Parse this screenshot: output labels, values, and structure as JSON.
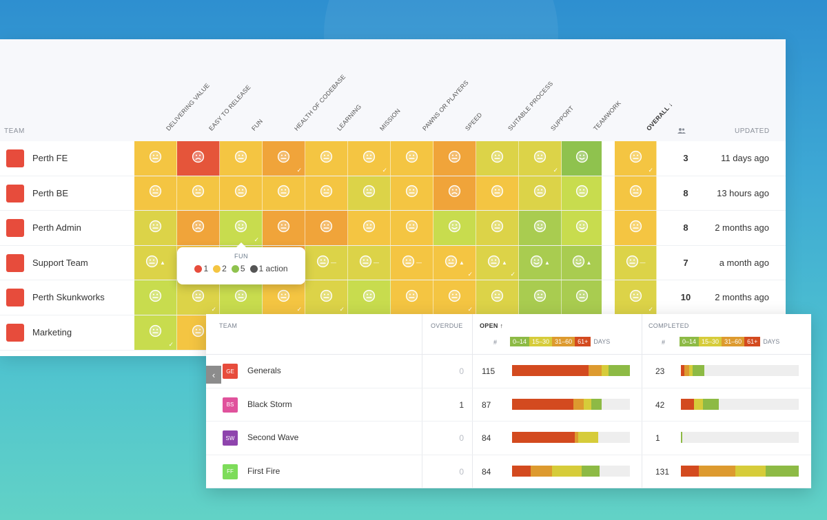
{
  "health": {
    "team_header": "TEAM",
    "updated_header": "UPDATED",
    "count_icon": "people-icon",
    "columns": [
      {
        "label": "DELIVERING VALUE"
      },
      {
        "label": "EASY TO RELEASE"
      },
      {
        "label": "FUN"
      },
      {
        "label": "HEALTH OF CODEBASE"
      },
      {
        "label": "LEARNING"
      },
      {
        "label": "MISSION"
      },
      {
        "label": "PAWNS OR PLAYERS"
      },
      {
        "label": "SPEED"
      },
      {
        "label": "SUITABLE PROCESS"
      },
      {
        "label": "SUPPORT"
      },
      {
        "label": "TEAMWORK"
      },
      {
        "label": "OVERALL ↓"
      }
    ],
    "rows": [
      {
        "name": "Perth FE",
        "count": "3",
        "updated": "11 days ago",
        "cells": [
          {
            "c": "#f4c542",
            "f": "neutral"
          },
          {
            "c": "#e5553a",
            "f": "sad"
          },
          {
            "c": "#f4c542",
            "f": "neutral"
          },
          {
            "c": "#f0a43a",
            "f": "neutral",
            "t": 1
          },
          {
            "c": "#f4c542",
            "f": "neutral"
          },
          {
            "c": "#f4c542",
            "f": "neutral",
            "t": 1
          },
          {
            "c": "#f4c542",
            "f": "neutral"
          },
          {
            "c": "#f0a43a",
            "f": "neutral"
          },
          {
            "c": "#dcd348",
            "f": "neutral"
          },
          {
            "c": "#dcd348",
            "f": "neutral",
            "t": 1
          },
          {
            "c": "#8fc24e",
            "f": "happy"
          },
          {
            "c": "#f4c542",
            "f": "neutral",
            "t": 1
          }
        ]
      },
      {
        "name": "Perth BE",
        "count": "8",
        "updated": "13 hours ago",
        "cells": [
          {
            "c": "#f4c542",
            "f": "neutral"
          },
          {
            "c": "#f4c542",
            "f": "neutral"
          },
          {
            "c": "#f4c542",
            "f": "neutral"
          },
          {
            "c": "#f4c542",
            "f": "neutral"
          },
          {
            "c": "#f4c542",
            "f": "neutral"
          },
          {
            "c": "#dcd348",
            "f": "neutral"
          },
          {
            "c": "#f4c542",
            "f": "neutral"
          },
          {
            "c": "#f0a43a",
            "f": "sad"
          },
          {
            "c": "#f4c542",
            "f": "neutral"
          },
          {
            "c": "#dcd348",
            "f": "neutral"
          },
          {
            "c": "#c8dc4e",
            "f": "neutral"
          },
          {
            "c": "#f4c542",
            "f": "neutral"
          }
        ]
      },
      {
        "name": "Perth Admin",
        "count": "8",
        "updated": "2 months ago",
        "cells": [
          {
            "c": "#dcd348",
            "f": "neutral"
          },
          {
            "c": "#f0a43a",
            "f": "sad"
          },
          {
            "c": "#c8dc4e",
            "f": "happy",
            "t": 1
          },
          {
            "c": "#f0a43a",
            "f": "neutral"
          },
          {
            "c": "#f0a43a",
            "f": "neutral"
          },
          {
            "c": "#f4c542",
            "f": "neutral"
          },
          {
            "c": "#f4c542",
            "f": "neutral"
          },
          {
            "c": "#c8dc4e",
            "f": "happy"
          },
          {
            "c": "#dcd348",
            "f": "neutral"
          },
          {
            "c": "#a9cc50",
            "f": "happy"
          },
          {
            "c": "#c8dc4e",
            "f": "happy"
          },
          {
            "c": "#f4c542",
            "f": "neutral"
          }
        ]
      },
      {
        "name": "Support Team",
        "count": "7",
        "updated": "a month ago",
        "cells": [
          {
            "c": "#dcd348",
            "f": "neutral",
            "tr": "up"
          },
          {
            "c": "#f4c542",
            "f": "neutral"
          },
          {
            "c": "#c8dc4e",
            "f": "neutral"
          },
          {
            "c": "#f0a43a",
            "f": "neutral",
            "tr": "down",
            "t": 1
          },
          {
            "c": "#dcd348",
            "f": "neutral",
            "tr": "flat"
          },
          {
            "c": "#dcd348",
            "f": "neutral",
            "tr": "flat"
          },
          {
            "c": "#f4c542",
            "f": "neutral",
            "tr": "flat"
          },
          {
            "c": "#f4c542",
            "f": "neutral",
            "tr": "up",
            "t": 1
          },
          {
            "c": "#dcd348",
            "f": "neutral",
            "tr": "up",
            "t": 1
          },
          {
            "c": "#a9cc50",
            "f": "happy",
            "tr": "up"
          },
          {
            "c": "#a9cc50",
            "f": "happy",
            "tr": "up"
          },
          {
            "c": "#dcd348",
            "f": "neutral",
            "tr": "flat"
          }
        ]
      },
      {
        "name": "Perth Skunkworks",
        "count": "10",
        "updated": "2 months ago",
        "cells": [
          {
            "c": "#c8dc4e",
            "f": "neutral"
          },
          {
            "c": "#dcd348",
            "f": "neutral",
            "t": 1
          },
          {
            "c": "#c8dc4e",
            "f": "neutral"
          },
          {
            "c": "#f4c542",
            "f": "neutral",
            "t": 1
          },
          {
            "c": "#dcd348",
            "f": "neutral",
            "t": 1
          },
          {
            "c": "#c8dc4e",
            "f": "neutral"
          },
          {
            "c": "#f4c542",
            "f": "neutral"
          },
          {
            "c": "#f4c542",
            "f": "neutral",
            "t": 1
          },
          {
            "c": "#dcd348",
            "f": "neutral"
          },
          {
            "c": "#a9cc50",
            "f": "neutral"
          },
          {
            "c": "#a9cc50",
            "f": "neutral"
          },
          {
            "c": "#dcd348",
            "f": "neutral",
            "t": 1
          }
        ]
      },
      {
        "name": "Marketing",
        "count": "",
        "updated": "",
        "cells": [
          {
            "c": "#c8dc4e",
            "f": "neutral",
            "t": 1
          },
          {
            "c": "#f4c542",
            "f": "neutral"
          },
          {
            "c": "#c8dc4e",
            "f": "neutral"
          },
          {
            "c": "#f4c542",
            "f": "neutral"
          },
          {
            "c": "#dcd348",
            "f": "neutral"
          },
          {
            "c": "#c8dc4e",
            "f": "neutral"
          },
          {
            "c": "#f4c542",
            "f": "neutral"
          },
          {
            "c": "#f4c542",
            "f": "neutral"
          },
          {
            "c": "#dcd348",
            "f": "neutral"
          },
          {
            "c": "#a9cc50",
            "f": "neutral"
          },
          {
            "c": "#a9cc50",
            "f": "neutral"
          },
          {
            "c": "#dcd348",
            "f": "neutral"
          }
        ]
      }
    ],
    "row_colors": [
      "#e74c3c"
    ],
    "tooltip": {
      "title": "FUN",
      "items": [
        {
          "icon": "sad-face-icon",
          "color": "#e74c3c",
          "value": "1"
        },
        {
          "icon": "neutral-face-icon",
          "color": "#f4c542",
          "value": "2"
        },
        {
          "icon": "happy-face-icon",
          "color": "#8fc24e",
          "value": "5"
        },
        {
          "icon": "check-circle-icon",
          "color": "#555",
          "value": "1 action"
        }
      ]
    }
  },
  "actions": {
    "team_header": "TEAM",
    "overdue_header": "OVERDUE",
    "open_header": "OPEN ↑",
    "completed_header": "COMPLETED",
    "hash": "#",
    "days": "DAYS",
    "legend": [
      {
        "label": "0–14",
        "color": "#8dba45"
      },
      {
        "label": "15–30",
        "color": "#d6cc3a"
      },
      {
        "label": "31–60",
        "color": "#dd9a2f"
      },
      {
        "label": "61+",
        "color": "#d34a1f"
      }
    ],
    "rows": [
      {
        "initials": "GE",
        "avatar_color": "#e74c3c",
        "name": "Generals",
        "overdue": "0",
        "open": "115",
        "open_bar": [
          0.65,
          0.11,
          0.06,
          0.18
        ],
        "completed": "23",
        "completed_bar": [
          0.03,
          0.04,
          0.03,
          0.1
        ]
      },
      {
        "initials": "BS",
        "avatar_color": "#e0529c",
        "name": "Black Storm",
        "overdue": "1",
        "open": "87",
        "open_bar": [
          0.52,
          0.09,
          0.06,
          0.09
        ],
        "completed": "42",
        "completed_bar": [
          0.11,
          0.0,
          0.08,
          0.13
        ]
      },
      {
        "initials": "SW",
        "avatar_color": "#8e44ad",
        "name": "Second Wave",
        "overdue": "0",
        "open": "84",
        "open_bar": [
          0.53,
          0.03,
          0.17,
          0.0
        ],
        "completed": "1",
        "completed_bar": [
          0.0,
          0.0,
          0.0,
          0.01
        ]
      },
      {
        "initials": "FF",
        "avatar_color": "#7ddc5a",
        "name": "First Fire",
        "overdue": "0",
        "open": "84",
        "open_bar": [
          0.16,
          0.18,
          0.25,
          0.15
        ],
        "completed": "131",
        "completed_bar": [
          0.15,
          0.31,
          0.26,
          0.28
        ]
      }
    ],
    "collapse_icon": "chevron-left-icon"
  }
}
